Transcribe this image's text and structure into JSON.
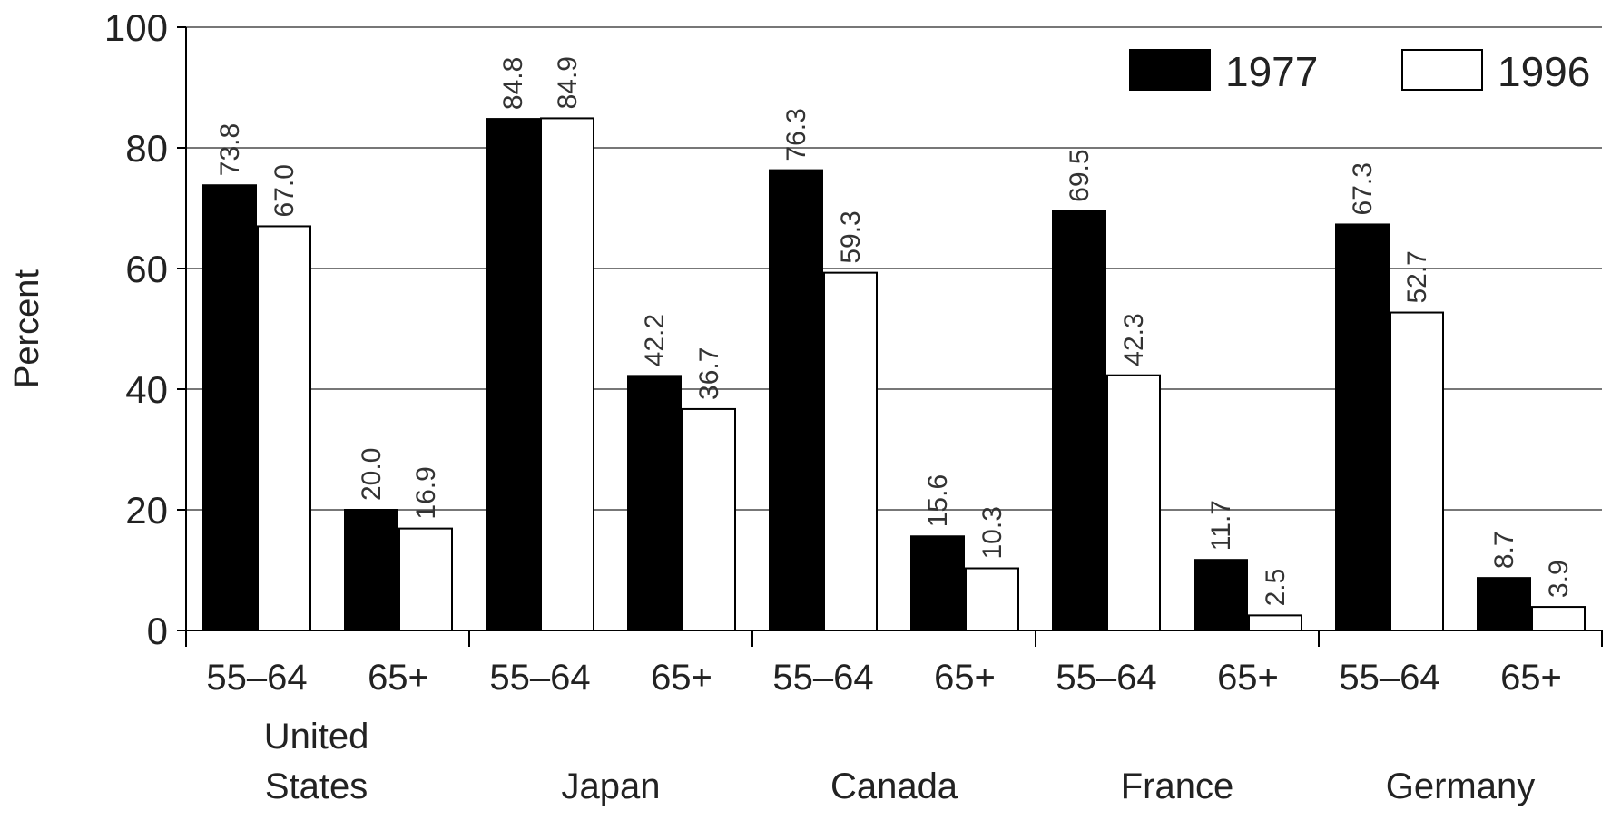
{
  "chart_data": {
    "type": "bar",
    "title": "",
    "ylabel": "Percent",
    "xlabel": "",
    "ylim": [
      0,
      100
    ],
    "yticks": [
      0,
      20,
      40,
      60,
      80,
      100
    ],
    "grid": true,
    "legend_position": "top-right",
    "colors": {
      "1977": "#000000",
      "1996": "#ffffff"
    },
    "groups": [
      {
        "country": [
          "United",
          "States"
        ],
        "categories": [
          "55–64",
          "65+"
        ]
      },
      {
        "country": [
          "Japan"
        ],
        "categories": [
          "55–64",
          "65+"
        ]
      },
      {
        "country": [
          "Canada"
        ],
        "categories": [
          "55–64",
          "65+"
        ]
      },
      {
        "country": [
          "France"
        ],
        "categories": [
          "55–64",
          "65+"
        ]
      },
      {
        "country": [
          "Germany"
        ],
        "categories": [
          "55–64",
          "65+"
        ]
      }
    ],
    "series": [
      {
        "name": "1977",
        "values": [
          [
            73.8,
            20.0
          ],
          [
            84.8,
            42.2
          ],
          [
            76.3,
            15.6
          ],
          [
            69.5,
            11.7
          ],
          [
            67.3,
            8.7
          ]
        ]
      },
      {
        "name": "1996",
        "values": [
          [
            67.0,
            16.9
          ],
          [
            84.9,
            36.7
          ],
          [
            59.3,
            10.3
          ],
          [
            42.3,
            2.5
          ],
          [
            52.7,
            3.9
          ]
        ]
      }
    ]
  }
}
